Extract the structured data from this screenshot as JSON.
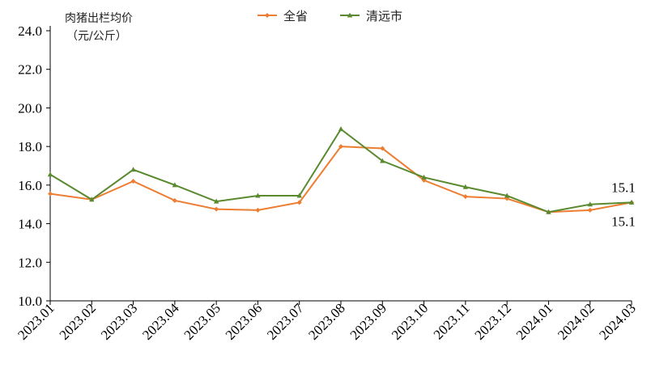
{
  "chart_data": {
    "type": "line",
    "title": "",
    "ylabel_line1": "肉猪出栏均价",
    "ylabel_line2": "（元/公斤）",
    "xlabel": "",
    "ylim": [
      10.0,
      24.0
    ],
    "yticks": [
      "10.0",
      "12.0",
      "14.0",
      "16.0",
      "18.0",
      "20.0",
      "22.0",
      "24.0"
    ],
    "categories": [
      "2023.01",
      "2023.02",
      "2023.03",
      "2023.04",
      "2023.05",
      "2023.06",
      "2023.07",
      "2023.08",
      "2023.09",
      "2023.10",
      "2023.11",
      "2023.12",
      "2024.01",
      "2024.02",
      "2024.03"
    ],
    "legend_position": "top-center",
    "grid": false,
    "series": [
      {
        "name": "全省",
        "color": "#ED7D31",
        "marker": "diamond",
        "values": [
          15.55,
          15.25,
          16.2,
          15.2,
          14.75,
          14.7,
          15.1,
          18.0,
          17.9,
          16.25,
          15.4,
          15.3,
          14.6,
          14.7,
          15.1
        ],
        "end_label": "15.1"
      },
      {
        "name": "清远市",
        "color": "#5A8A2F",
        "marker": "triangle",
        "values": [
          16.55,
          15.25,
          16.8,
          16.0,
          15.15,
          15.45,
          15.45,
          18.9,
          17.25,
          16.4,
          15.9,
          15.45,
          14.6,
          15.0,
          15.1
        ],
        "end_label": "15.1"
      }
    ]
  }
}
